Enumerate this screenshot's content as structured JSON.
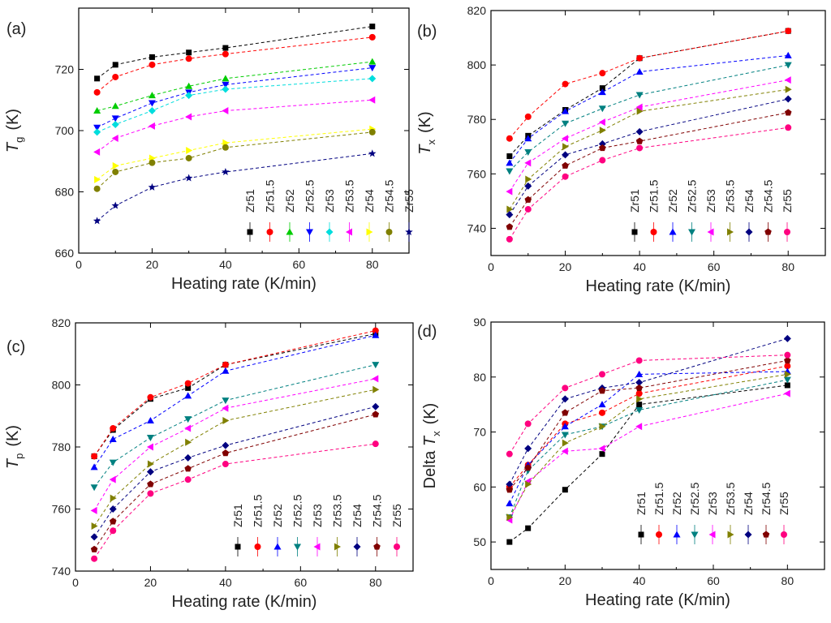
{
  "figure": {
    "labels": [
      "(a)",
      "(b)",
      "(c)",
      "(d)"
    ]
  },
  "legend_names": [
    "Zr51",
    "Zr51.5",
    "Zr52",
    "Zr52.5",
    "Zr53",
    "Zr53.5",
    "Zr54",
    "Zr54.5",
    "Zr55"
  ],
  "chart_data": [
    {
      "id": "a",
      "label": "(a)",
      "type": "line",
      "xlabel": "Heating rate  (K/min)",
      "ylabel": "T",
      "ylabel_sub": "g",
      "ylabel_unit": "(K)",
      "xlim": [
        0,
        90
      ],
      "ylim": [
        660,
        740
      ],
      "xticks": [
        0,
        20,
        40,
        60,
        80
      ],
      "yticks": [
        660,
        680,
        700,
        720
      ],
      "x": [
        5,
        10,
        20,
        30,
        40,
        80
      ],
      "series": [
        {
          "name": "Zr51",
          "color": "#000000",
          "marker": "square",
          "values": [
            717,
            721.5,
            724,
            725.5,
            727,
            734
          ]
        },
        {
          "name": "Zr51.5",
          "color": "#ff0000",
          "marker": "circle",
          "values": [
            712.5,
            717.5,
            721.5,
            723.5,
            725,
            730.5
          ]
        },
        {
          "name": "Zr52",
          "color": "#00cc00",
          "marker": "triangle",
          "values": [
            706.5,
            708,
            711.5,
            714.5,
            717,
            722.5
          ]
        },
        {
          "name": "Zr52.5",
          "color": "#0000ff",
          "marker": "tri-down",
          "values": [
            701,
            704,
            709,
            712.5,
            715,
            720.5
          ]
        },
        {
          "name": "Zr53",
          "color": "#00dddd",
          "marker": "diamond",
          "values": [
            699.5,
            702,
            706.5,
            711.5,
            713.5,
            717
          ]
        },
        {
          "name": "Zr53.5",
          "color": "#ff00ff",
          "marker": "tri-left",
          "values": [
            693,
            697.5,
            701.5,
            704.5,
            706.5,
            710
          ]
        },
        {
          "name": "Zr54",
          "color": "#ffff00",
          "marker": "tri-right",
          "values": [
            684,
            688.5,
            691,
            693.5,
            696,
            700.5
          ]
        },
        {
          "name": "Zr54.5",
          "color": "#808000",
          "marker": "circle",
          "values": [
            681,
            686.5,
            689.5,
            691,
            694.5,
            699.5
          ]
        },
        {
          "name": "Zr55",
          "color": "#000080",
          "marker": "star",
          "values": [
            670.5,
            675.5,
            681.5,
            684.5,
            686.5,
            692.5
          ]
        }
      ]
    },
    {
      "id": "b",
      "label": "(b)",
      "type": "line",
      "xlabel": "Heating rate  (K/min)",
      "ylabel": "T",
      "ylabel_sub": "x",
      "ylabel_unit": "(K)",
      "xlim": [
        0,
        90
      ],
      "ylim": [
        730,
        820
      ],
      "xticks": [
        0,
        20,
        40,
        60,
        80
      ],
      "yticks": [
        740,
        760,
        780,
        800,
        820
      ],
      "x": [
        5,
        10,
        20,
        30,
        40,
        80
      ],
      "series": [
        {
          "name": "Zr51",
          "color": "#000000",
          "marker": "square",
          "values": [
            766.5,
            774,
            783.5,
            791.5,
            802.5,
            812.5
          ]
        },
        {
          "name": "Zr51.5",
          "color": "#ff0000",
          "marker": "circle",
          "values": [
            773,
            781,
            793,
            797,
            802.5,
            812.5
          ]
        },
        {
          "name": "Zr52",
          "color": "#0000ff",
          "marker": "triangle",
          "values": [
            764,
            773,
            783,
            790,
            797.5,
            803.5
          ]
        },
        {
          "name": "Zr52.5",
          "color": "#008080",
          "marker": "tri-down",
          "values": [
            761,
            768,
            778.5,
            784,
            789,
            800
          ]
        },
        {
          "name": "Zr53",
          "color": "#ff00ff",
          "marker": "tri-left",
          "values": [
            753.5,
            764,
            773,
            779,
            784.5,
            794.5
          ]
        },
        {
          "name": "Zr53.5",
          "color": "#808000",
          "marker": "tri-right",
          "values": [
            747,
            758,
            770,
            776,
            783,
            791
          ]
        },
        {
          "name": "Zr54",
          "color": "#000080",
          "marker": "diamond",
          "values": [
            745,
            755.5,
            767,
            771,
            775.5,
            787.5
          ]
        },
        {
          "name": "Zr54.5",
          "color": "#800000",
          "marker": "pentagon",
          "values": [
            740.5,
            750.5,
            763,
            769.5,
            772,
            782.5
          ]
        },
        {
          "name": "Zr55",
          "color": "#ff0080",
          "marker": "circle",
          "values": [
            736,
            747,
            759,
            765,
            769.5,
            777
          ]
        }
      ]
    },
    {
      "id": "c",
      "label": "(c)",
      "type": "line",
      "xlabel": "Heating rate  (K/min)",
      "ylabel": "T",
      "ylabel_sub": "p",
      "ylabel_unit": "(K)",
      "xlim": [
        0,
        90
      ],
      "ylim": [
        740,
        820
      ],
      "xticks": [
        0,
        20,
        40,
        60,
        80
      ],
      "yticks": [
        740,
        760,
        780,
        800,
        820
      ],
      "x": [
        5,
        10,
        20,
        30,
        40,
        80
      ],
      "series": [
        {
          "name": "Zr51",
          "color": "#000000",
          "marker": "square",
          "values": [
            777,
            785.5,
            795.5,
            799,
            806.5,
            816.5
          ]
        },
        {
          "name": "Zr51.5",
          "color": "#ff0000",
          "marker": "circle",
          "values": [
            777,
            786,
            796,
            800.5,
            806.5,
            817.5
          ]
        },
        {
          "name": "Zr52",
          "color": "#0000ff",
          "marker": "triangle",
          "values": [
            773.5,
            782.5,
            788.5,
            796.5,
            804.5,
            816
          ]
        },
        {
          "name": "Zr52.5",
          "color": "#008080",
          "marker": "tri-down",
          "values": [
            767,
            775,
            783,
            789,
            795,
            806.5
          ]
        },
        {
          "name": "Zr53",
          "color": "#ff00ff",
          "marker": "tri-left",
          "values": [
            759.5,
            769.5,
            780,
            786,
            792.5,
            802
          ]
        },
        {
          "name": "Zr53.5",
          "color": "#808000",
          "marker": "tri-right",
          "values": [
            754.5,
            763.5,
            774.5,
            781.5,
            788.5,
            798.5
          ]
        },
        {
          "name": "Zr54",
          "color": "#000080",
          "marker": "diamond",
          "values": [
            751,
            760,
            772,
            776.5,
            780.5,
            793
          ]
        },
        {
          "name": "Zr54.5",
          "color": "#800000",
          "marker": "pentagon",
          "values": [
            747,
            756,
            768,
            773,
            778,
            790.5
          ]
        },
        {
          "name": "Zr55",
          "color": "#ff0080",
          "marker": "circle",
          "values": [
            744,
            753,
            765,
            769.5,
            774.5,
            781
          ]
        }
      ]
    },
    {
      "id": "d",
      "label": "(d)",
      "type": "line",
      "xlabel": "Heating rate  (K/min)",
      "ylabel": "Delta T",
      "ylabel_sub": "x",
      "ylabel_unit": "(K)",
      "xlim": [
        0,
        90
      ],
      "ylim": [
        45,
        90
      ],
      "xticks": [
        0,
        20,
        40,
        60,
        80
      ],
      "yticks": [
        50,
        60,
        70,
        80,
        90
      ],
      "x": [
        5,
        10,
        20,
        30,
        40,
        80
      ],
      "series": [
        {
          "name": "Zr51",
          "color": "#000000",
          "marker": "square",
          "values": [
            50,
            52.5,
            59.5,
            66,
            75,
            78.5
          ]
        },
        {
          "name": "Zr51.5",
          "color": "#ff0000",
          "marker": "circle",
          "values": [
            60,
            64,
            71.5,
            73.5,
            77,
            82
          ]
        },
        {
          "name": "Zr52",
          "color": "#0000ff",
          "marker": "triangle",
          "values": [
            57,
            64,
            71,
            75,
            80.5,
            81
          ]
        },
        {
          "name": "Zr52.5",
          "color": "#008080",
          "marker": "tri-down",
          "values": [
            54.5,
            63,
            69.5,
            71,
            74,
            79.5
          ]
        },
        {
          "name": "Zr53",
          "color": "#ff00ff",
          "marker": "tri-left",
          "values": [
            54,
            61,
            66.5,
            67,
            71,
            77
          ]
        },
        {
          "name": "Zr53.5",
          "color": "#808000",
          "marker": "tri-right",
          "values": [
            54.5,
            60.5,
            68,
            71,
            76,
            80.5
          ]
        },
        {
          "name": "Zr54",
          "color": "#000080",
          "marker": "diamond",
          "values": [
            60.5,
            67,
            76,
            78,
            79,
            87
          ]
        },
        {
          "name": "Zr54.5",
          "color": "#800000",
          "marker": "pentagon",
          "values": [
            59.5,
            63.5,
            73.5,
            77.5,
            78,
            83
          ]
        },
        {
          "name": "Zr55",
          "color": "#ff0080",
          "marker": "circle",
          "values": [
            66,
            71.5,
            78,
            80.5,
            83,
            84
          ]
        }
      ]
    }
  ]
}
